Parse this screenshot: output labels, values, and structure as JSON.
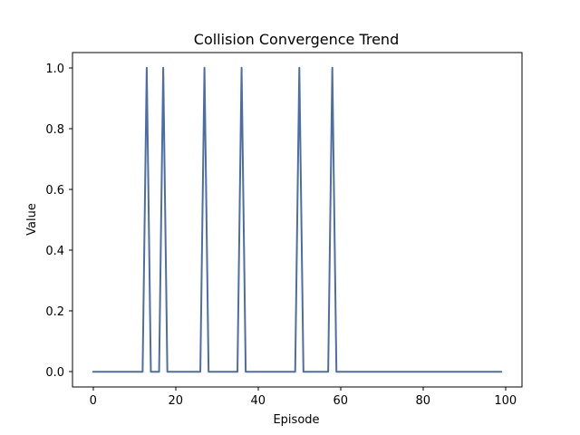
{
  "chart_data": {
    "type": "line",
    "title": "Collision Convergence Trend",
    "xlabel": "Episode",
    "ylabel": "Value",
    "xlim": [
      -5,
      104
    ],
    "ylim": [
      -0.05,
      1.05
    ],
    "xticks": [
      0,
      20,
      40,
      60,
      80,
      100
    ],
    "xtick_labels": [
      "0",
      "20",
      "40",
      "60",
      "80",
      "100"
    ],
    "yticks": [
      0.0,
      0.2,
      0.4,
      0.6,
      0.8,
      1.0
    ],
    "ytick_labels": [
      "0.0",
      "0.2",
      "0.4",
      "0.6",
      "0.8",
      "1.0"
    ],
    "grid": false,
    "series": [
      {
        "color": "#4c6ea5",
        "x_start": 0,
        "x_end": 99,
        "spike_episodes": [
          13,
          17,
          27,
          36,
          50,
          58
        ],
        "baseline": 0,
        "spike_value": 1
      }
    ]
  }
}
